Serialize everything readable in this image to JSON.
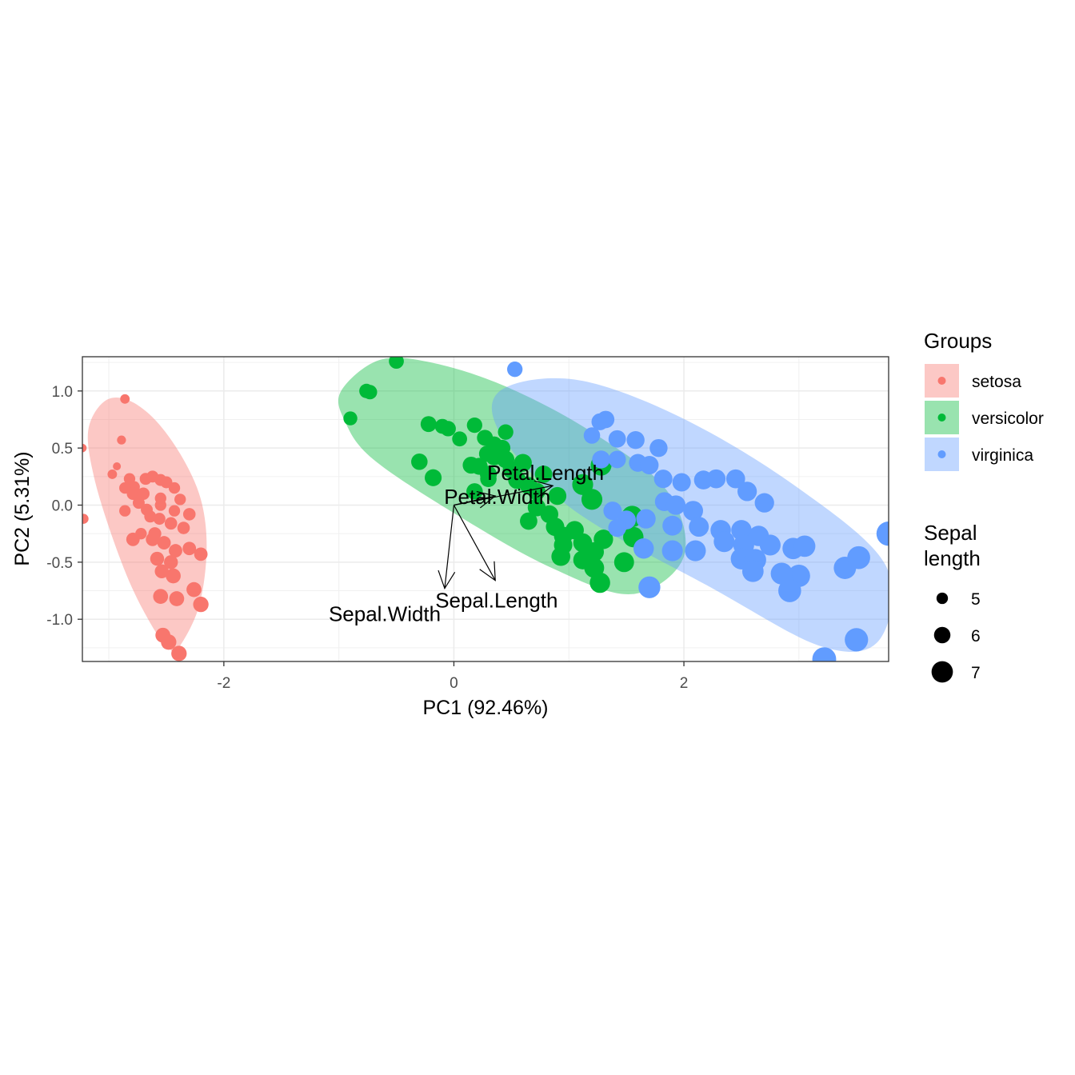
{
  "chart_data": {
    "type": "scatter",
    "subtype": "pca-biplot",
    "xlabel": "PC1 (92.46%)",
    "ylabel": "PC2 (5.31%)",
    "xlim": [
      -3.23,
      3.78
    ],
    "ylim": [
      -1.37,
      1.3
    ],
    "x_ticks": [
      -2,
      0,
      2
    ],
    "x_tick_labels": [
      "-2",
      "0",
      "2"
    ],
    "y_ticks": [
      1.0,
      0.5,
      0.0,
      -0.5,
      -1.0
    ],
    "y_tick_labels": [
      "1.0",
      "0.5",
      "0.0",
      "-0.5",
      "-1.0"
    ],
    "grid": true,
    "legend_position": "right",
    "legend_groups_title": "Groups",
    "legend_size_title": [
      "Sepal",
      "length"
    ],
    "size_legend": [
      {
        "label": "5",
        "value": 5
      },
      {
        "label": "6",
        "value": 6
      },
      {
        "label": "7",
        "value": 7
      }
    ],
    "series": [
      {
        "name": "setosa",
        "color": "#F8766D",
        "ellipse_color": "#F8766D",
        "ellipse_path": [
          [
            -2.4,
            -1.26
          ],
          [
            -2.22,
            -0.9
          ],
          [
            -2.15,
            -0.4
          ],
          [
            -2.2,
            0.05
          ],
          [
            -2.38,
            0.45
          ],
          [
            -2.62,
            0.77
          ],
          [
            -2.86,
            0.93
          ],
          [
            -3.05,
            0.9
          ],
          [
            -3.18,
            0.65
          ],
          [
            -3.13,
            0.25
          ],
          [
            -2.98,
            -0.25
          ],
          [
            -2.8,
            -0.72
          ],
          [
            -2.6,
            -1.1
          ],
          [
            -2.48,
            -1.25
          ]
        ],
        "points": [
          [
            -3.23,
            0.5,
            4.4
          ],
          [
            -3.22,
            -0.12,
            4.7
          ],
          [
            -2.86,
            0.93,
            4.6
          ],
          [
            -2.89,
            0.57,
            4.5
          ],
          [
            -2.93,
            0.34,
            4.3
          ],
          [
            -2.97,
            0.27,
            4.6
          ],
          [
            -2.82,
            0.23,
            5.0
          ],
          [
            -2.78,
            0.16,
            5.0
          ],
          [
            -2.68,
            0.23,
            5.1
          ],
          [
            -2.62,
            0.25,
            5.1
          ],
          [
            -2.55,
            0.22,
            5.1
          ],
          [
            -2.5,
            0.2,
            5.1
          ],
          [
            -2.43,
            0.15,
            5.0
          ],
          [
            -2.86,
            0.15,
            5.0
          ],
          [
            -2.79,
            0.1,
            5.2
          ],
          [
            -2.7,
            0.1,
            5.2
          ],
          [
            -2.55,
            0.06,
            5.0
          ],
          [
            -2.38,
            0.05,
            5.0
          ],
          [
            -2.74,
            0.02,
            5.1
          ],
          [
            -2.86,
            -0.05,
            5.0
          ],
          [
            -2.67,
            -0.04,
            5.1
          ],
          [
            -2.55,
            0.0,
            5.0
          ],
          [
            -2.43,
            -0.05,
            5.0
          ],
          [
            -2.3,
            -0.08,
            5.2
          ],
          [
            -2.64,
            -0.1,
            5.1
          ],
          [
            -2.56,
            -0.12,
            5.1
          ],
          [
            -2.46,
            -0.16,
            5.2
          ],
          [
            -2.35,
            -0.2,
            5.2
          ],
          [
            -2.72,
            -0.25,
            5.0
          ],
          [
            -2.6,
            -0.25,
            5.3
          ],
          [
            -2.79,
            -0.3,
            5.4
          ],
          [
            -2.62,
            -0.3,
            5.4
          ],
          [
            -2.52,
            -0.33,
            5.4
          ],
          [
            -2.42,
            -0.4,
            5.4
          ],
          [
            -2.3,
            -0.38,
            5.4
          ],
          [
            -2.2,
            -0.43,
            5.4
          ],
          [
            -2.58,
            -0.47,
            5.5
          ],
          [
            -2.46,
            -0.5,
            5.5
          ],
          [
            -2.54,
            -0.58,
            5.5
          ],
          [
            -2.44,
            -0.62,
            5.7
          ],
          [
            -2.26,
            -0.74,
            5.7
          ],
          [
            -2.55,
            -0.8,
            5.7
          ],
          [
            -2.41,
            -0.82,
            5.7
          ],
          [
            -2.2,
            -0.87,
            5.8
          ],
          [
            -2.53,
            -1.14,
            5.7
          ],
          [
            -2.48,
            -1.2,
            5.8
          ],
          [
            -2.39,
            -1.3,
            5.8
          ]
        ]
      },
      {
        "name": "versicolor",
        "color": "#00BA38",
        "ellipse_color": "#00BA38",
        "ellipse_path": [
          [
            -0.98,
            1.0
          ],
          [
            -0.65,
            1.27
          ],
          [
            -0.2,
            1.25
          ],
          [
            0.45,
            1.04
          ],
          [
            1.2,
            0.64
          ],
          [
            1.85,
            0.13
          ],
          [
            2.0,
            -0.45
          ],
          [
            1.55,
            -0.78
          ],
          [
            0.85,
            -0.55
          ],
          [
            0.05,
            -0.1
          ],
          [
            -0.7,
            0.4
          ],
          [
            -0.95,
            0.74
          ]
        ],
        "points": [
          [
            -0.5,
            1.26,
            5.7
          ],
          [
            -0.73,
            0.99,
            5.6
          ],
          [
            -0.76,
            1.0,
            5.6
          ],
          [
            -0.9,
            0.76,
            5.5
          ],
          [
            -0.22,
            0.71,
            5.9
          ],
          [
            -0.05,
            0.67,
            5.8
          ],
          [
            -0.1,
            0.69,
            5.7
          ],
          [
            0.18,
            0.7,
            5.8
          ],
          [
            0.05,
            0.58,
            5.7
          ],
          [
            0.27,
            0.59,
            5.9
          ],
          [
            0.45,
            0.64,
            5.8
          ],
          [
            0.42,
            0.5,
            6.0
          ],
          [
            0.35,
            0.53,
            6.0
          ],
          [
            0.29,
            0.45,
            6.0
          ],
          [
            0.35,
            0.42,
            6.0
          ],
          [
            -0.3,
            0.38,
            6.0
          ],
          [
            -0.18,
            0.24,
            6.1
          ],
          [
            0.15,
            0.35,
            6.1
          ],
          [
            0.22,
            0.34,
            6.1
          ],
          [
            0.3,
            0.27,
            6.1
          ],
          [
            0.18,
            0.12,
            6.0
          ],
          [
            0.3,
            0.23,
            6.0
          ],
          [
            0.45,
            0.4,
            6.2
          ],
          [
            0.5,
            0.31,
            6.2
          ],
          [
            0.6,
            0.37,
            6.3
          ],
          [
            0.55,
            0.22,
            6.3
          ],
          [
            0.65,
            0.17,
            6.2
          ],
          [
            0.78,
            0.27,
            6.2
          ],
          [
            0.72,
            0.12,
            6.2
          ],
          [
            0.9,
            0.08,
            6.3
          ],
          [
            0.72,
            -0.02,
            6.3
          ],
          [
            0.65,
            -0.14,
            6.2
          ],
          [
            0.83,
            -0.08,
            6.3
          ],
          [
            0.88,
            -0.19,
            6.4
          ],
          [
            0.95,
            -0.27,
            6.4
          ],
          [
            1.05,
            -0.22,
            6.4
          ],
          [
            0.95,
            -0.35,
            6.4
          ],
          [
            1.12,
            -0.33,
            6.5
          ],
          [
            0.93,
            -0.45,
            6.5
          ],
          [
            1.12,
            -0.48,
            6.5
          ],
          [
            1.22,
            -0.41,
            6.6
          ],
          [
            1.3,
            -0.3,
            6.6
          ],
          [
            1.22,
            -0.55,
            6.7
          ],
          [
            1.48,
            -0.5,
            6.7
          ],
          [
            1.27,
            -0.68,
            6.8
          ],
          [
            1.56,
            -0.28,
            6.8
          ],
          [
            1.12,
            0.18,
            6.9
          ],
          [
            1.28,
            0.35,
            6.9
          ],
          [
            1.55,
            -0.1,
            7.0
          ],
          [
            1.2,
            0.05,
            6.9
          ]
        ]
      },
      {
        "name": "virginica",
        "color": "#619CFF",
        "ellipse_color": "#619CFF",
        "ellipse_path": [
          [
            0.4,
            1.0
          ],
          [
            1.05,
            1.1
          ],
          [
            1.95,
            0.78
          ],
          [
            2.95,
            0.18
          ],
          [
            3.75,
            -0.52
          ],
          [
            3.7,
            -1.18
          ],
          [
            3.2,
            -1.24
          ],
          [
            2.25,
            -0.73
          ],
          [
            1.05,
            -0.05
          ],
          [
            0.42,
            0.6
          ]
        ],
        "points": [
          [
            0.53,
            1.19,
            5.8
          ],
          [
            1.2,
            0.61,
            6.0
          ],
          [
            1.27,
            0.73,
            6.1
          ],
          [
            1.32,
            0.75,
            6.2
          ],
          [
            1.42,
            0.58,
            6.2
          ],
          [
            1.58,
            0.57,
            6.3
          ],
          [
            1.78,
            0.5,
            6.3
          ],
          [
            1.42,
            0.4,
            6.2
          ],
          [
            1.28,
            0.4,
            6.3
          ],
          [
            1.6,
            0.37,
            6.3
          ],
          [
            1.7,
            0.35,
            6.4
          ],
          [
            1.82,
            0.23,
            6.4
          ],
          [
            1.98,
            0.2,
            6.4
          ],
          [
            2.17,
            0.22,
            6.5
          ],
          [
            2.28,
            0.23,
            6.5
          ],
          [
            2.45,
            0.23,
            6.5
          ],
          [
            2.55,
            0.12,
            6.6
          ],
          [
            2.7,
            0.02,
            6.6
          ],
          [
            1.83,
            0.03,
            6.5
          ],
          [
            1.93,
            -0.0,
            6.6
          ],
          [
            2.08,
            -0.05,
            6.7
          ],
          [
            1.38,
            -0.05,
            6.4
          ],
          [
            1.5,
            -0.13,
            6.5
          ],
          [
            1.67,
            -0.12,
            6.6
          ],
          [
            1.9,
            -0.18,
            6.7
          ],
          [
            2.13,
            -0.19,
            6.7
          ],
          [
            2.32,
            -0.22,
            6.8
          ],
          [
            2.5,
            -0.22,
            6.8
          ],
          [
            2.65,
            -0.27,
            6.8
          ],
          [
            2.35,
            -0.32,
            6.9
          ],
          [
            2.52,
            -0.35,
            6.9
          ],
          [
            2.75,
            -0.35,
            6.9
          ],
          [
            2.95,
            -0.38,
            7.0
          ],
          [
            3.05,
            -0.36,
            7.0
          ],
          [
            1.65,
            -0.38,
            6.8
          ],
          [
            1.9,
            -0.4,
            6.9
          ],
          [
            2.1,
            -0.4,
            6.9
          ],
          [
            2.5,
            -0.47,
            7.0
          ],
          [
            2.62,
            -0.48,
            7.1
          ],
          [
            3.4,
            -0.55,
            7.2
          ],
          [
            3.52,
            -0.46,
            7.3
          ],
          [
            3.0,
            -0.62,
            7.2
          ],
          [
            2.92,
            -0.75,
            7.3
          ],
          [
            1.7,
            -0.72,
            7.1
          ],
          [
            3.5,
            -1.18,
            7.4
          ],
          [
            3.22,
            -1.35,
            7.5
          ],
          [
            3.78,
            -0.25,
            7.6
          ],
          [
            2.6,
            -0.58,
            7.0
          ],
          [
            2.85,
            -0.6,
            7.1
          ],
          [
            1.42,
            -0.2,
            6.3
          ]
        ]
      }
    ],
    "loadings": [
      {
        "name": "Petal.Length",
        "x": 0.86,
        "y": 0.17
      },
      {
        "name": "Petal.Width",
        "x": 0.36,
        "y": 0.08
      },
      {
        "name": "Sepal.Length",
        "x": 0.36,
        "y": -0.66
      },
      {
        "name": "Sepal.Width",
        "x": -0.08,
        "y": -0.73
      }
    ]
  }
}
